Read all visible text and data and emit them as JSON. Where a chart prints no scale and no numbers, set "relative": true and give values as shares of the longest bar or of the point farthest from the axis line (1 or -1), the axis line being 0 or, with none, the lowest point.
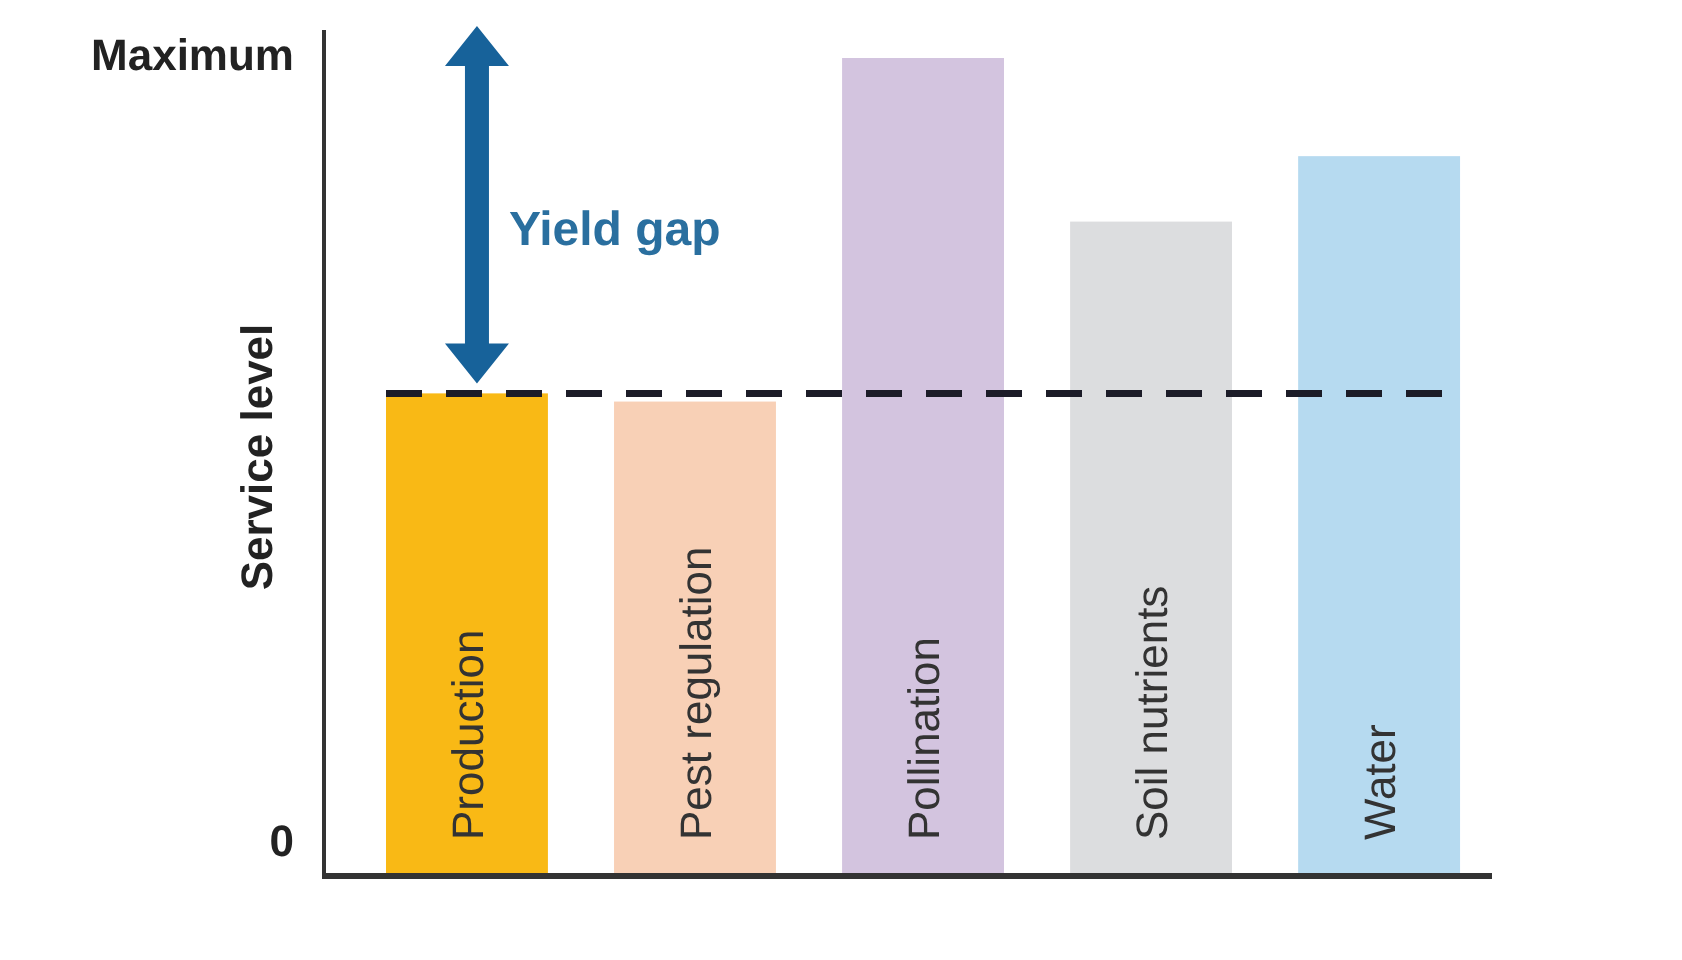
{
  "chart_data": {
    "type": "bar",
    "relative": true,
    "ylabel": "Service level",
    "categories": [
      "Production",
      "Pest regulation",
      "Pollination",
      "Soil nutrients",
      "Water"
    ],
    "values": [
      0.59,
      0.58,
      1,
      0.8,
      0.88
    ],
    "colors": [
      "#f9b915",
      "#f8d0b6",
      "#d3c4df",
      "#dcdddf",
      "#b6daf0"
    ],
    "ref_lines": [
      {
        "axis": "y",
        "value": 0.59,
        "color": "#1c1c28",
        "line_style": "dashed"
      }
    ],
    "annotations": [
      "Maximum",
      "Yield gap",
      "0"
    ]
  }
}
